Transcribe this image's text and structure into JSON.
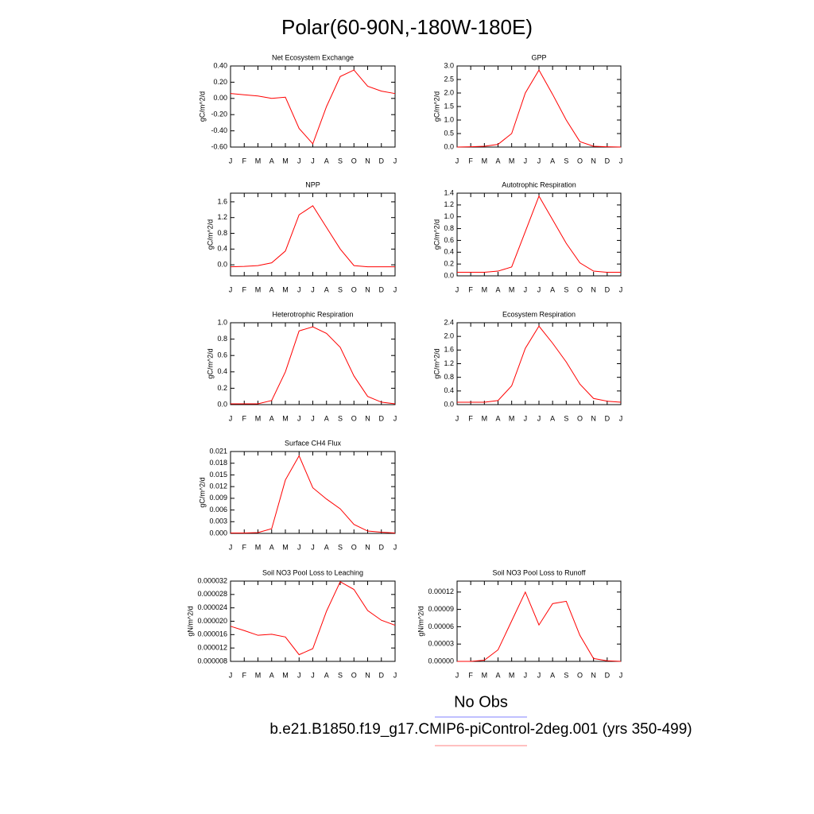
{
  "title": "Polar(60-90N,-180W-180E)",
  "legend": [
    {
      "name": "No Obs",
      "color": "#8080ff"
    },
    {
      "name": "b.e21.B1850.f19_g17.CMIP6-piControl-2deg.001 (yrs 350-499)",
      "color": "#ff8080"
    }
  ],
  "chart_data": [
    {
      "type": "line",
      "title": "Net Ecosystem Exchange",
      "y_label": "gC/m^2/d",
      "categories": [
        "J",
        "F",
        "M",
        "A",
        "M",
        "J",
        "J",
        "A",
        "S",
        "O",
        "N",
        "D",
        "J"
      ],
      "series": [
        {
          "color": "#ff0000",
          "values": [
            0.06,
            0.045,
            0.03,
            0.0,
            0.015,
            -0.37,
            -0.56,
            -0.1,
            0.27,
            0.35,
            0.15,
            0.09,
            0.06
          ]
        }
      ],
      "ylim": [
        -0.6,
        0.4
      ],
      "yticks": [
        {
          "value": -0.6,
          "label": "-0.60"
        },
        {
          "value": -0.4,
          "label": "-0.40"
        },
        {
          "value": -0.2,
          "label": "-0.20"
        },
        {
          "value": 0,
          "label": "0.00"
        },
        {
          "value": 0.2,
          "label": "0.20"
        },
        {
          "value": 0.4,
          "label": "0.40"
        }
      ]
    },
    {
      "type": "line",
      "title": "GPP",
      "y_label": "gC/m^2/d",
      "categories": [
        "J",
        "F",
        "M",
        "A",
        "M",
        "J",
        "J",
        "A",
        "S",
        "O",
        "N",
        "D",
        "J"
      ],
      "series": [
        {
          "color": "#ff0000",
          "values": [
            0.0,
            0.01,
            0.03,
            0.1,
            0.5,
            2.0,
            2.85,
            1.95,
            1.0,
            0.2,
            0.03,
            0.01,
            0.0
          ]
        }
      ],
      "ylim": [
        0,
        3
      ],
      "yticks": [
        {
          "value": 0,
          "label": "0.0"
        },
        0.5,
        {
          "value": 1,
          "label": "1.0"
        },
        1.5,
        {
          "value": 2,
          "label": "2.0"
        },
        2.5,
        {
          "value": 3,
          "label": "3.0"
        }
      ]
    },
    {
      "type": "line",
      "title": "NPP",
      "y_label": "gC/m^2/d",
      "categories": [
        "J",
        "F",
        "M",
        "A",
        "M",
        "J",
        "J",
        "A",
        "S",
        "O",
        "N",
        "D",
        "J"
      ],
      "series": [
        {
          "color": "#ff0000",
          "values": [
            -0.05,
            -0.04,
            -0.02,
            0.05,
            0.35,
            1.27,
            1.5,
            0.95,
            0.4,
            -0.02,
            -0.05,
            -0.05,
            -0.05
          ]
        }
      ],
      "ylim": [
        -0.28,
        1.82
      ],
      "yticks": [
        {
          "value": 0,
          "label": "0.0"
        },
        0.4,
        0.8,
        1.2,
        1.6
      ]
    },
    {
      "type": "line",
      "title": "Autotrophic Respiration",
      "y_label": "gC/m^2/d",
      "categories": [
        "J",
        "F",
        "M",
        "A",
        "M",
        "J",
        "J",
        "A",
        "S",
        "O",
        "N",
        "D",
        "J"
      ],
      "series": [
        {
          "color": "#ff0000",
          "values": [
            0.06,
            0.06,
            0.06,
            0.08,
            0.15,
            0.75,
            1.35,
            0.95,
            0.55,
            0.22,
            0.08,
            0.06,
            0.06
          ]
        }
      ],
      "ylim": [
        0,
        1.4
      ],
      "yticks": [
        {
          "value": 0,
          "label": "0.0"
        },
        0.2,
        0.4,
        0.6,
        0.8,
        {
          "value": 1,
          "label": "1.0"
        },
        1.2,
        1.4
      ]
    },
    {
      "type": "line",
      "title": "Heterotrophic Respiration",
      "y_label": "gC/m^2/d",
      "categories": [
        "J",
        "F",
        "M",
        "A",
        "M",
        "J",
        "J",
        "A",
        "S",
        "O",
        "N",
        "D",
        "J"
      ],
      "series": [
        {
          "color": "#ff0000",
          "values": [
            0.01,
            0.01,
            0.01,
            0.05,
            0.4,
            0.9,
            0.95,
            0.87,
            0.7,
            0.35,
            0.1,
            0.03,
            0.01
          ]
        }
      ],
      "ylim": [
        0,
        1
      ],
      "yticks": [
        {
          "value": 0,
          "label": "0.0"
        },
        0.2,
        0.4,
        0.6,
        0.8,
        {
          "value": 1,
          "label": "1.0"
        }
      ]
    },
    {
      "type": "line",
      "title": "Ecosystem Respiration",
      "y_label": "gC/m^2/d",
      "categories": [
        "J",
        "F",
        "M",
        "A",
        "M",
        "J",
        "J",
        "A",
        "S",
        "O",
        "N",
        "D",
        "J"
      ],
      "series": [
        {
          "color": "#ff0000",
          "values": [
            0.07,
            0.07,
            0.07,
            0.12,
            0.55,
            1.65,
            2.3,
            1.8,
            1.25,
            0.6,
            0.18,
            0.1,
            0.07
          ]
        }
      ],
      "ylim": [
        0,
        2.4
      ],
      "yticks": [
        {
          "value": 0,
          "label": "0.0"
        },
        0.4,
        0.8,
        1.2,
        1.6,
        {
          "value": 2,
          "label": "2.0"
        },
        2.4
      ]
    },
    {
      "type": "line",
      "title": "Surface CH4 Flux",
      "y_label": "gC/m^2/d",
      "categories": [
        "J",
        "F",
        "M",
        "A",
        "M",
        "J",
        "J",
        "A",
        "S",
        "O",
        "N",
        "D",
        "J"
      ],
      "series": [
        {
          "color": "#ff0000",
          "values": [
            0.0001,
            0.0001,
            0.0002,
            0.0012,
            0.0137,
            0.0199,
            0.0117,
            0.0088,
            0.0063,
            0.0023,
            0.0006,
            0.0003,
            0.0001
          ]
        }
      ],
      "ylim": [
        0,
        0.021
      ],
      "yticks": [
        {
          "value": 0,
          "label": "0.000"
        },
        0.003,
        0.006,
        0.009,
        0.012,
        0.015,
        0.018,
        0.021
      ]
    },
    {
      "type": "line",
      "title": "Soil NO3 Pool Loss to Leaching",
      "y_label": "gN/m^2/d",
      "categories": [
        "J",
        "F",
        "M",
        "A",
        "M",
        "J",
        "J",
        "A",
        "S",
        "O",
        "N",
        "D",
        "J"
      ],
      "series": [
        {
          "color": "#ff0000",
          "values": [
            1.85e-05,
            1.72e-05,
            1.58e-05,
            1.61e-05,
            1.53e-05,
            1e-05,
            1.18e-05,
            2.3e-05,
            3.18e-05,
            2.95e-05,
            2.32e-05,
            2.03e-05,
            1.88e-05
          ]
        }
      ],
      "ylim": [
        8e-06,
        3.2e-05
      ],
      "yticks": [
        {
          "value": 8e-06,
          "label": "0.000008"
        },
        {
          "value": 1.2e-05,
          "label": "0.000012"
        },
        {
          "value": 1.6e-05,
          "label": "0.000016"
        },
        {
          "value": 2e-05,
          "label": "0.000020"
        },
        {
          "value": 2.4e-05,
          "label": "0.000024"
        },
        {
          "value": 2.8e-05,
          "label": "0.000028"
        },
        {
          "value": 3.2e-05,
          "label": "0.000032"
        }
      ]
    },
    {
      "type": "line",
      "title": "Soil NO3 Pool Loss to Runoff",
      "y_label": "gN/m^2/d",
      "categories": [
        "J",
        "F",
        "M",
        "A",
        "M",
        "J",
        "J",
        "A",
        "S",
        "O",
        "N",
        "D",
        "J"
      ],
      "series": [
        {
          "color": "#ff0000",
          "values": [
            0,
            0,
            2e-06,
            2e-05,
            7e-05,
            0.00012,
            6.3e-05,
            0.0001,
            0.000104,
            4.5e-05,
            5e-06,
            1e-06,
            0
          ]
        }
      ],
      "ylim": [
        0,
        0.000139
      ],
      "yticks": [
        {
          "value": 0,
          "label": "0.00000"
        },
        {
          "value": 3e-05,
          "label": "0.00003"
        },
        {
          "value": 6e-05,
          "label": "0.00006"
        },
        {
          "value": 9e-05,
          "label": "0.00009"
        },
        {
          "value": 0.00012,
          "label": "0.00012"
        }
      ]
    }
  ]
}
